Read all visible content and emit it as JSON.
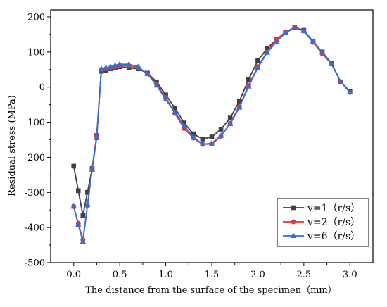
{
  "chart_data": {
    "type": "line",
    "title": "",
    "xlabel": "The distance from the surface of the specimen（mm）",
    "ylabel": "Residual stress (MPa)",
    "xlim": [
      -0.25,
      3.25
    ],
    "ylim": [
      -500,
      220
    ],
    "xticks": [
      0.0,
      0.5,
      1.0,
      1.5,
      2.0,
      2.5,
      3.0
    ],
    "xtick_labels": [
      "0.0",
      "0.5",
      "1.0",
      "1.5",
      "2.0",
      "2.5",
      "3.0"
    ],
    "yticks": [
      -500,
      -400,
      -300,
      -200,
      -100,
      0,
      100,
      200
    ],
    "ytick_labels": [
      "-500",
      "-400",
      "-300",
      "-200",
      "-100",
      "0",
      "100",
      "200"
    ],
    "legend_position": "bottom-right",
    "grid": false,
    "series": [
      {
        "name": "v=1（r/s）",
        "color": "#404040",
        "marker": "square",
        "x": [
          0.0,
          0.05,
          0.1,
          0.15,
          0.2,
          0.25,
          0.3,
          0.35,
          0.4,
          0.45,
          0.5,
          0.6,
          0.7,
          0.8,
          0.9,
          1.0,
          1.1,
          1.2,
          1.3,
          1.4,
          1.5,
          1.6,
          1.7,
          1.8,
          1.9,
          2.0,
          2.1,
          2.2,
          2.3,
          2.4,
          2.5,
          2.6,
          2.7,
          2.8,
          2.9,
          3.0
        ],
        "values": [
          -225,
          -295,
          -365,
          -300,
          -232,
          -138,
          45,
          48,
          52,
          55,
          58,
          55,
          52,
          40,
          15,
          -22,
          -60,
          -102,
          -133,
          -148,
          -142,
          -120,
          -88,
          -40,
          22,
          75,
          110,
          135,
          157,
          170,
          162,
          130,
          100,
          68,
          15,
          -12
        ]
      },
      {
        "name": "v=2（r/s）",
        "color": "#e8333a",
        "marker": "circle",
        "x": [
          0.0,
          0.05,
          0.1,
          0.15,
          0.2,
          0.25,
          0.3,
          0.35,
          0.4,
          0.45,
          0.5,
          0.6,
          0.7,
          0.8,
          0.9,
          1.0,
          1.1,
          1.2,
          1.3,
          1.4,
          1.5,
          1.6,
          1.7,
          1.8,
          1.9,
          2.0,
          2.1,
          2.2,
          2.3,
          2.4,
          2.5,
          2.6,
          2.7,
          2.8,
          2.9,
          3.0
        ],
        "values": [
          -340,
          -388,
          -435,
          -338,
          -232,
          -140,
          50,
          52,
          55,
          58,
          62,
          60,
          55,
          38,
          8,
          -30,
          -75,
          -118,
          -145,
          -163,
          -162,
          -140,
          -103,
          -55,
          5,
          58,
          100,
          135,
          157,
          170,
          160,
          128,
          95,
          66,
          15,
          -15
        ]
      },
      {
        "name": "v=6（r/s）",
        "color": "#2f6fd6",
        "marker": "triangle",
        "x": [
          0.0,
          0.05,
          0.1,
          0.15,
          0.2,
          0.25,
          0.3,
          0.35,
          0.4,
          0.45,
          0.5,
          0.6,
          0.7,
          0.8,
          0.9,
          1.0,
          1.1,
          1.2,
          1.3,
          1.4,
          1.5,
          1.6,
          1.7,
          1.8,
          1.9,
          2.0,
          2.1,
          2.2,
          2.3,
          2.4,
          2.5,
          2.6,
          2.7,
          2.8,
          2.9,
          3.0
        ],
        "values": [
          -340,
          -392,
          -440,
          -335,
          -235,
          -145,
          52,
          55,
          58,
          62,
          65,
          65,
          58,
          38,
          5,
          -35,
          -72,
          -110,
          -142,
          -163,
          -160,
          -138,
          -105,
          -58,
          2,
          55,
          98,
          128,
          155,
          168,
          160,
          130,
          100,
          66,
          15,
          -15
        ]
      }
    ]
  }
}
